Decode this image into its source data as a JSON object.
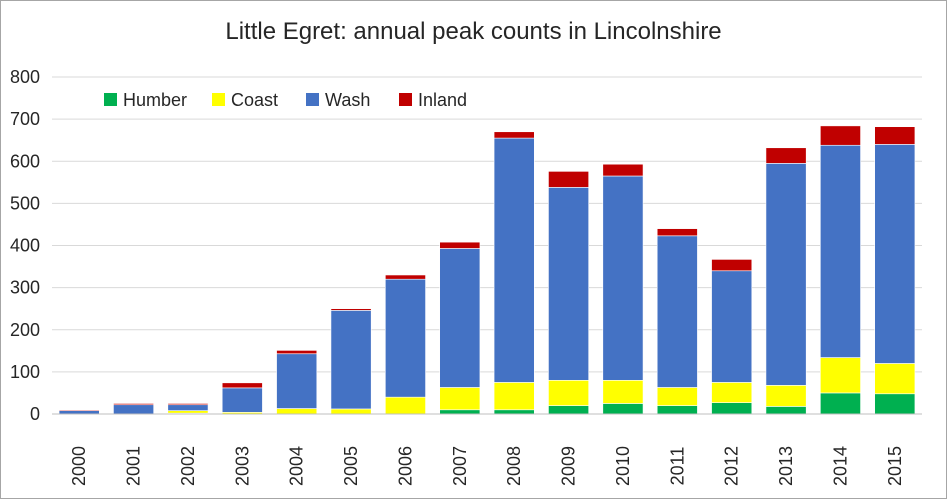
{
  "chart_data": {
    "type": "bar",
    "stacked": true,
    "title": "Little Egret: annual peak counts in Lincolnshire",
    "xlabel": "",
    "ylabel": "",
    "ylim": [
      0,
      800
    ],
    "yticks": [
      "0",
      "100",
      "200",
      "300",
      "400",
      "500",
      "600",
      "700",
      "800"
    ],
    "grid": true,
    "legend_position": "top-left",
    "categories": [
      "2000",
      "2001",
      "2002",
      "2003",
      "2004",
      "2005",
      "2006",
      "2007",
      "2008",
      "2009",
      "2010",
      "2011",
      "2012",
      "2013",
      "2014",
      "2015"
    ],
    "series": [
      {
        "name": "Humber",
        "color": "#00b050",
        "values": [
          0,
          0,
          2,
          0,
          0,
          0,
          0,
          10,
          10,
          20,
          25,
          20,
          27,
          18,
          50,
          48
        ]
      },
      {
        "name": "Coast",
        "color": "#ffff00",
        "values": [
          0,
          0,
          6,
          4,
          13,
          12,
          40,
          53,
          65,
          60,
          55,
          43,
          48,
          50,
          84,
          72
        ]
      },
      {
        "name": "Wash",
        "color": "#4472c4",
        "values": [
          8,
          22,
          14,
          58,
          130,
          234,
          280,
          330,
          580,
          458,
          485,
          360,
          265,
          527,
          504,
          520
        ]
      },
      {
        "name": "Inland",
        "color": "#c00000",
        "values": [
          2,
          3,
          3,
          12,
          8,
          4,
          10,
          15,
          15,
          38,
          28,
          17,
          27,
          37,
          46,
          42
        ]
      }
    ]
  }
}
